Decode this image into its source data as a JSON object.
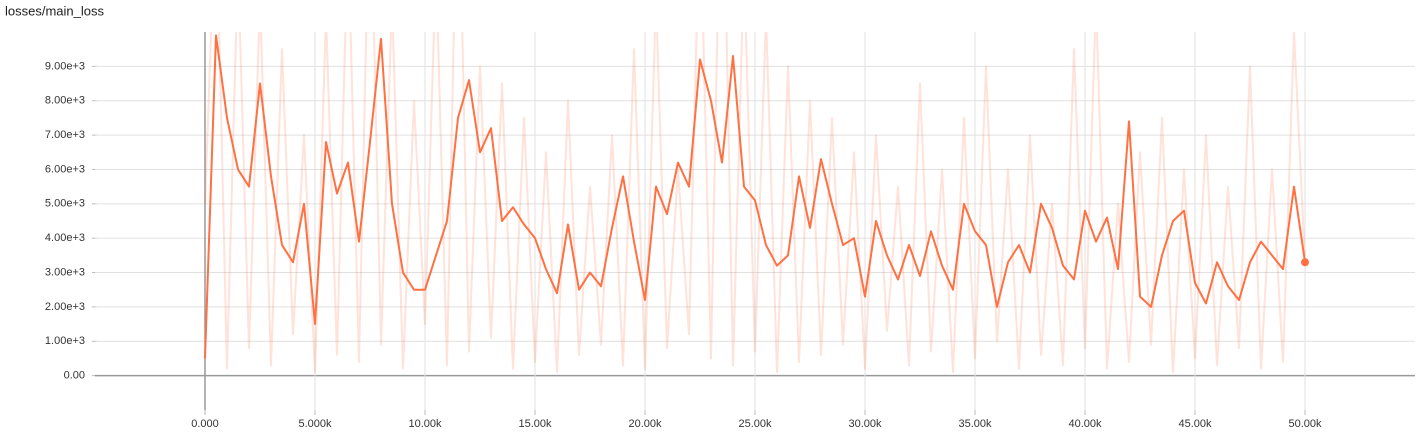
{
  "chart_data": {
    "type": "line",
    "title": "losses/main_loss",
    "x": [
      0,
      500,
      1000,
      1500,
      2000,
      2500,
      3000,
      3500,
      4000,
      4500,
      5000,
      5500,
      6000,
      6500,
      7000,
      7500,
      8000,
      8500,
      9000,
      9500,
      10000,
      10500,
      11000,
      11500,
      12000,
      12500,
      13000,
      13500,
      14000,
      14500,
      15000,
      15500,
      16000,
      16500,
      17000,
      17500,
      18000,
      18500,
      19000,
      19500,
      20000,
      20500,
      21000,
      21500,
      22000,
      22500,
      23000,
      23500,
      24000,
      24500,
      25000,
      25500,
      26000,
      26500,
      27000,
      27500,
      28000,
      28500,
      29000,
      29500,
      30000,
      30500,
      31000,
      31500,
      32000,
      32500,
      33000,
      33500,
      34000,
      34500,
      35000,
      35500,
      36000,
      36500,
      37000,
      37500,
      38000,
      38500,
      39000,
      39500,
      40000,
      40500,
      41000,
      41500,
      42000,
      42500,
      43000,
      43500,
      44000,
      44500,
      45000,
      45500,
      46000,
      46500,
      47000,
      47500,
      48000,
      48500,
      49000,
      49500,
      50000
    ],
    "series": [
      {
        "color": "#ff7043",
        "opacity": 0.2,
        "values": [
          5000,
          14000,
          200,
          12000,
          800,
          11000,
          300,
          9500,
          1200,
          7000,
          100,
          10500,
          600,
          13000,
          400,
          15000,
          900,
          11000,
          200,
          8000,
          1500,
          12000,
          300,
          16000,
          700,
          9000,
          1100,
          8500,
          200,
          7500,
          400,
          6500,
          100,
          8000,
          600,
          5500,
          900,
          7000,
          300,
          9500,
          200,
          11000,
          800,
          6000,
          1200,
          14000,
          500,
          17000,
          300,
          12000,
          700,
          10500,
          100,
          9000,
          400,
          8000,
          600,
          7500,
          900,
          6500,
          200,
          7000,
          1300,
          5500,
          300,
          8500,
          700,
          6000,
          100,
          7500,
          500,
          9000,
          1000,
          6000,
          200,
          7000,
          600,
          5000,
          300,
          9500,
          800,
          11000,
          200,
          5000,
          400,
          6500,
          900,
          7500,
          100,
          6000,
          500,
          7000,
          300,
          5500,
          800,
          9000,
          200,
          6000,
          400,
          10000,
          3300
        ]
      },
      {
        "color": "#ff7043",
        "opacity": 1,
        "end_marker": true,
        "values": [
          500,
          9900,
          7500,
          6000,
          5500,
          8500,
          5800,
          3800,
          3300,
          5000,
          1500,
          6800,
          5300,
          6200,
          3900,
          6800,
          9800,
          5000,
          3000,
          2500,
          2500,
          3500,
          4500,
          7500,
          8600,
          6500,
          7200,
          4500,
          4900,
          4400,
          4000,
          3100,
          2400,
          4400,
          2500,
          3000,
          2600,
          4300,
          5800,
          3900,
          2200,
          5500,
          4700,
          6200,
          5500,
          9200,
          8000,
          6200,
          9300,
          5500,
          5100,
          3800,
          3200,
          3500,
          5800,
          4300,
          6300,
          5000,
          3800,
          4000,
          2300,
          4500,
          3500,
          2800,
          3800,
          2900,
          4200,
          3200,
          2500,
          5000,
          4200,
          3800,
          2000,
          3300,
          3800,
          3000,
          5000,
          4300,
          3200,
          2800,
          4800,
          3900,
          4600,
          3100,
          7400,
          2300,
          2000,
          3500,
          4500,
          4800,
          2700,
          2100,
          3300,
          2600,
          2200,
          3300,
          3900,
          3500,
          3100,
          5500,
          3300
        ]
      }
    ],
    "xlim": [
      -5000,
      55000
    ],
    "ylim": [
      -1000,
      10000
    ],
    "xticks": [
      {
        "value": 0,
        "label": "0.000"
      },
      {
        "value": 5000,
        "label": "5.000k"
      },
      {
        "value": 10000,
        "label": "10.00k"
      },
      {
        "value": 15000,
        "label": "15.00k"
      },
      {
        "value": 20000,
        "label": "20.00k"
      },
      {
        "value": 25000,
        "label": "25.00k"
      },
      {
        "value": 30000,
        "label": "30.00k"
      },
      {
        "value": 35000,
        "label": "35.00k"
      },
      {
        "value": 40000,
        "label": "40.00k"
      },
      {
        "value": 45000,
        "label": "45.00k"
      },
      {
        "value": 50000,
        "label": "50.00k"
      }
    ],
    "yticks": [
      {
        "value": 0,
        "label": "0.00"
      },
      {
        "value": 1000,
        "label": "1.00e+3"
      },
      {
        "value": 2000,
        "label": "2.00e+3"
      },
      {
        "value": 3000,
        "label": "3.00e+3"
      },
      {
        "value": 4000,
        "label": "4.00e+3"
      },
      {
        "value": 5000,
        "label": "5.00e+3"
      },
      {
        "value": 6000,
        "label": "6.00e+3"
      },
      {
        "value": 7000,
        "label": "7.00e+3"
      },
      {
        "value": 8000,
        "label": "8.00e+3"
      },
      {
        "value": 9000,
        "label": "9.00e+3"
      }
    ],
    "grid": true
  }
}
